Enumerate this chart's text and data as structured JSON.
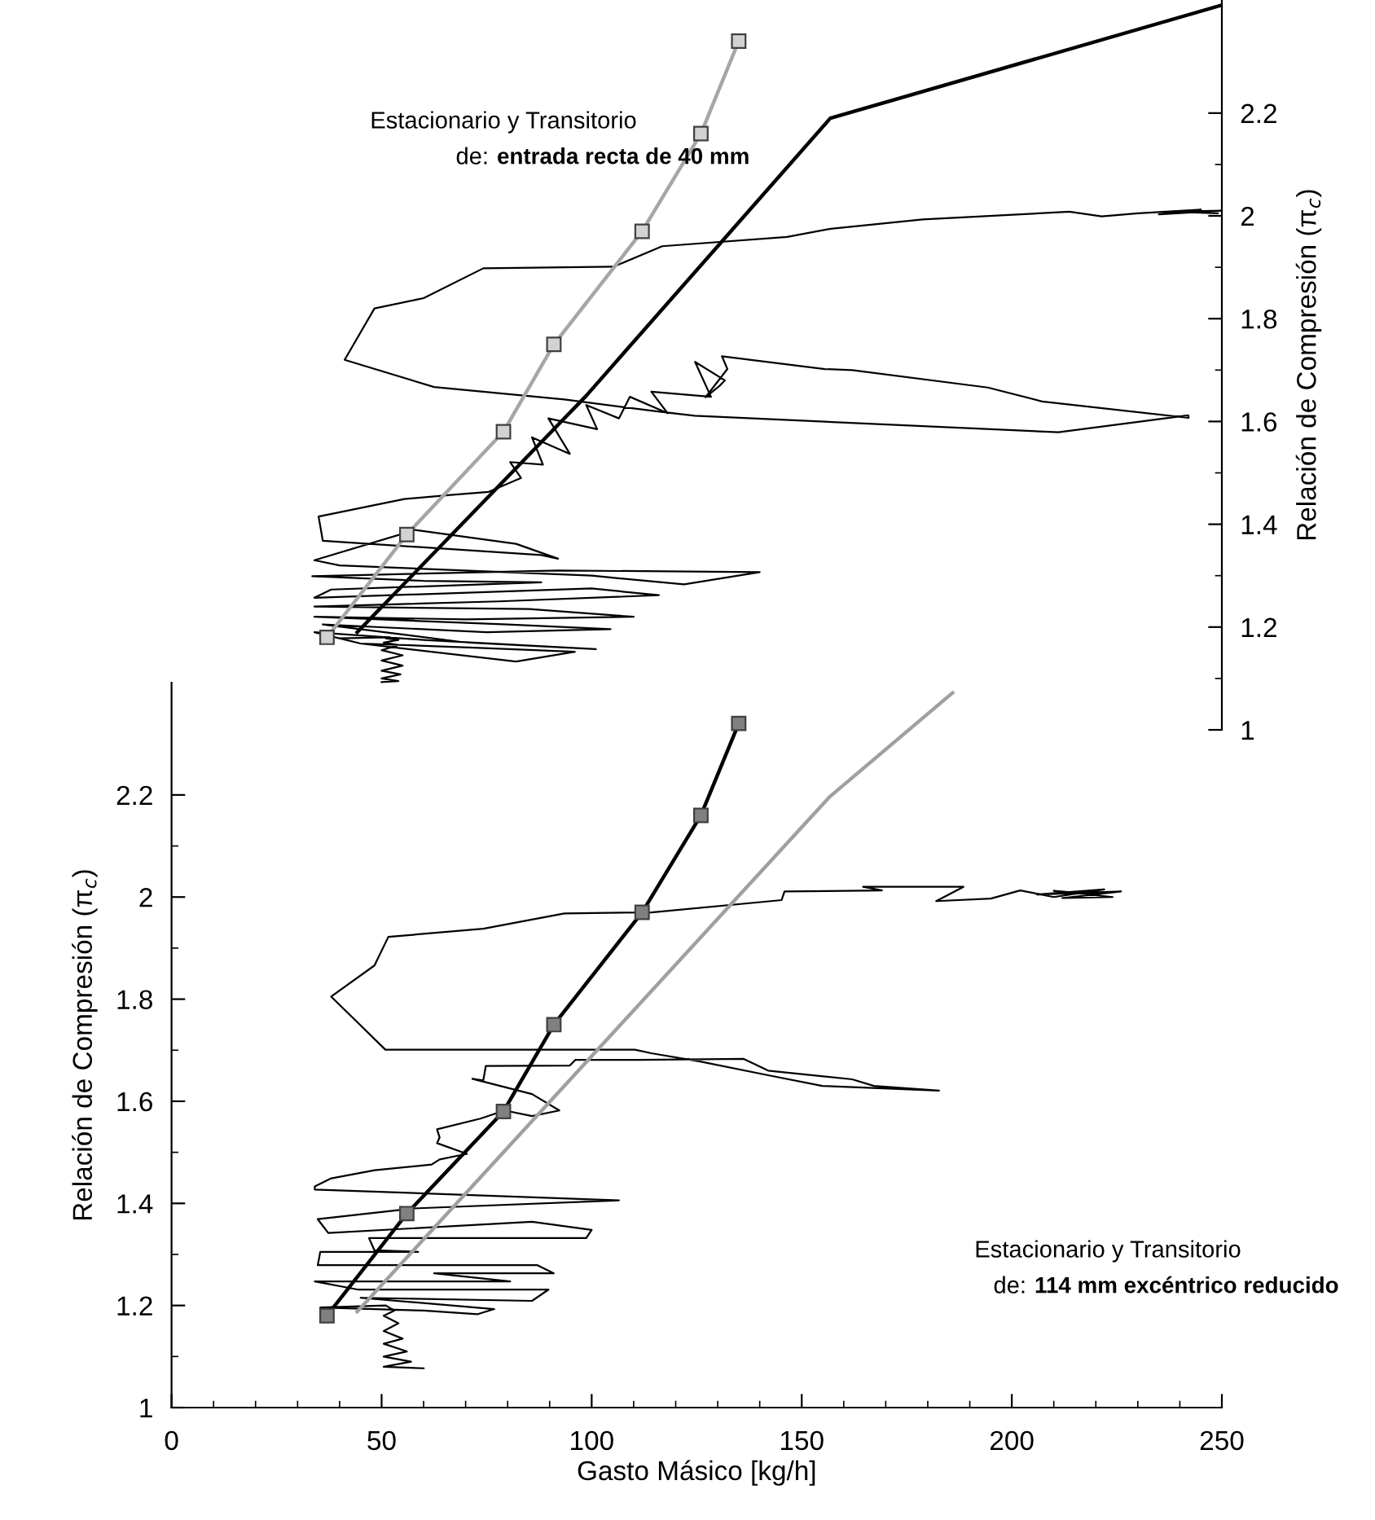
{
  "chart_data": [
    {
      "type": "line",
      "ylabel": "Relación de Compresión (π$_{c}$)",
      "annotations": [
        "Estacionario y Transitorio",
        "de:",
        "entrada recta de 40 mm"
      ],
      "xlim": [
        0,
        250
      ],
      "ylim": [
        1,
        2.42
      ],
      "yticks": [
        1,
        {
          "value": 1.1,
          "label": null
        },
        1.2,
        {
          "value": 1.3,
          "label": null
        },
        1.4,
        {
          "value": 1.5,
          "label": null
        },
        1.6,
        {
          "value": 1.7,
          "label": null
        },
        1.8,
        {
          "value": 1.9,
          "label": null
        },
        2,
        {
          "value": 2.1,
          "label": null
        },
        2.2
      ],
      "tick_labels": "y",
      "grid": false,
      "legend": false,
      "series": [
        {
          "color": "#000000",
          "marker": "none",
          "x": [
            50,
            54,
            50,
            54.5,
            50,
            55,
            50,
            55,
            50,
            54,
            50.5,
            54,
            51,
            52,
            40,
            45,
            82,
            96,
            72,
            45,
            34,
            60,
            101,
            70,
            36,
            75,
            104.5,
            80,
            34,
            70,
            110,
            85,
            34,
            78,
            116,
            100,
            34,
            38,
            88,
            60,
            33.5,
            92,
            140,
            122,
            100,
            40,
            34,
            58,
            82,
            92,
            88,
            36,
            35,
            55.4,
            66.4,
            75.5,
            83.2,
            80.6,
            88.4,
            85.8,
            94.8,
            89.7,
            101.3,
            98.7,
            106.5,
            109.1,
            118.1,
            114.2,
            128.4,
            124.6,
            131.7,
            130.4,
            127.1,
            132.3,
            131,
            155.5,
            162,
            194.3,
            207.2,
            242.1,
            242,
            211.1,
            124.5,
            114.2,
            93.5,
            62.5,
            41.2,
            48.3,
            60,
            74.2,
            105.2,
            116.8,
            146.5,
            156.9,
            178.8,
            213.7,
            221.4,
            230,
            245,
            235,
            250,
            238,
            249
          ],
          "values": [
            1.093,
            1.095,
            1.1,
            1.108,
            1.115,
            1.125,
            1.135,
            1.145,
            1.155,
            1.165,
            1.17,
            1.175,
            1.178,
            1.18,
            1.178,
            1.168,
            1.133,
            1.152,
            1.16,
            1.168,
            1.19,
            1.175,
            1.157,
            1.17,
            1.205,
            1.19,
            1.196,
            1.205,
            1.22,
            1.215,
            1.22,
            1.235,
            1.24,
            1.25,
            1.262,
            1.275,
            1.257,
            1.273,
            1.287,
            1.29,
            1.299,
            1.31,
            1.307,
            1.283,
            1.3,
            1.32,
            1.33,
            1.389,
            1.362,
            1.333,
            1.34,
            1.368,
            1.415,
            1.449,
            1.457,
            1.463,
            1.49,
            1.521,
            1.516,
            1.569,
            1.537,
            1.606,
            1.585,
            1.632,
            1.606,
            1.648,
            1.616,
            1.658,
            1.648,
            1.716,
            1.68,
            1.669,
            1.647,
            1.702,
            1.727,
            1.702,
            1.7,
            1.666,
            1.639,
            1.607,
            1.612,
            1.579,
            1.611,
            1.621,
            1.643,
            1.667,
            1.72,
            1.82,
            1.84,
            1.898,
            1.901,
            1.941,
            1.959,
            1.975,
            1.993,
            2.008,
            1.999,
            2.005,
            2.012,
            2.003,
            2.01,
            2.008,
            2.005
          ]
        },
        {
          "color": "#a6a6a6",
          "marker": "square",
          "x": [
            37,
            56,
            79,
            91,
            112,
            126,
            135
          ],
          "values": [
            1.18,
            1.38,
            1.58,
            1.75,
            1.97,
            2.16,
            2.34
          ]
        },
        {
          "color": "#000000",
          "marker": "none",
          "x": [
            44.2,
            98.7,
            156.8,
            250
          ],
          "values": [
            1.19,
            1.65,
            2.19,
            2.41
          ]
        }
      ]
    },
    {
      "type": "line",
      "xlabel": "Gasto Másico [kg/h]",
      "ylabel": "Relación de Compresión (π$_{c}$)",
      "annotations": [
        "Estacionario y Transitorio",
        "de:",
        "114 mm excéntrico reducido"
      ],
      "xlim": [
        0,
        250
      ],
      "ylim": [
        1,
        2.42
      ],
      "xticks": [
        0,
        {
          "value": 10,
          "label": null
        },
        {
          "value": 20,
          "label": null
        },
        {
          "value": 30,
          "label": null
        },
        {
          "value": 40,
          "label": null
        },
        50,
        {
          "value": 60,
          "label": null
        },
        {
          "value": 70,
          "label": null
        },
        {
          "value": 80,
          "label": null
        },
        {
          "value": 90,
          "label": null
        },
        100,
        {
          "value": 110,
          "label": null
        },
        {
          "value": 120,
          "label": null
        },
        {
          "value": 130,
          "label": null
        },
        {
          "value": 140,
          "label": null
        },
        150,
        {
          "value": 160,
          "label": null
        },
        {
          "value": 170,
          "label": null
        },
        {
          "value": 180,
          "label": null
        },
        {
          "value": 190,
          "label": null
        },
        200,
        {
          "value": 210,
          "label": null
        },
        {
          "value": 220,
          "label": null
        },
        {
          "value": 230,
          "label": null
        },
        {
          "value": 240,
          "label": null
        },
        250
      ],
      "yticks": [
        1,
        {
          "value": 1.1,
          "label": null
        },
        1.2,
        {
          "value": 1.3,
          "label": null
        },
        1.4,
        {
          "value": 1.5,
          "label": null
        },
        1.6,
        {
          "value": 1.7,
          "label": null
        },
        1.8,
        {
          "value": 1.9,
          "label": null
        },
        2,
        {
          "value": 2.1,
          "label": null
        },
        2.2
      ],
      "grid": false,
      "legend": false,
      "series": [
        {
          "color": "#000000",
          "marker": "none",
          "x": [
            60,
            50.5,
            57,
            50.5,
            56,
            50.5,
            55,
            50.5,
            54,
            50.5,
            53,
            51,
            35.4,
            60,
            72.9,
            76.8,
            45,
            85.8,
            89.7,
            44.5,
            34.1,
            80.6,
            62.5,
            91,
            87.1,
            34.8,
            35.4,
            58.7,
            48.3,
            47,
            98.7,
            100,
            85.8,
            37.3,
            34.8,
            57.4,
            106.5,
            34.1,
            34.1,
            38,
            48.3,
            61.9,
            63.8,
            70.3,
            63.2,
            63.8,
            63.2,
            73.5,
            79.3,
            85.8,
            92.3,
            85.8,
            71.6,
            74.2,
            74.8,
            94.8,
            96.1,
            111.6,
            136.2,
            142,
            162,
            167.2,
            182.7,
            154.9,
            142,
            125.8,
            114.2,
            110.3,
            50.9,
            38,
            48.3,
            51.6,
            74.2,
            93.5,
            114.2,
            145.2,
            145.9,
            169.1,
            164.6,
            188.5,
            182,
            195,
            202,
            210,
            222,
            206,
            226,
            212,
            224,
            210,
            220
          ],
          "values": [
            1.077,
            1.08,
            1.09,
            1.1,
            1.11,
            1.125,
            1.135,
            1.15,
            1.165,
            1.18,
            1.19,
            1.2,
            1.196,
            1.19,
            1.183,
            1.193,
            1.215,
            1.209,
            1.231,
            1.231,
            1.247,
            1.247,
            1.263,
            1.263,
            1.279,
            1.279,
            1.305,
            1.305,
            1.308,
            1.332,
            1.332,
            1.348,
            1.364,
            1.342,
            1.369,
            1.39,
            1.406,
            1.427,
            1.433,
            1.449,
            1.465,
            1.476,
            1.486,
            1.497,
            1.518,
            1.529,
            1.545,
            1.566,
            1.582,
            1.571,
            1.582,
            1.614,
            1.644,
            1.641,
            1.669,
            1.67,
            1.681,
            1.681,
            1.683,
            1.66,
            1.643,
            1.63,
            1.621,
            1.63,
            1.651,
            1.678,
            1.694,
            1.701,
            1.701,
            1.805,
            1.866,
            1.922,
            1.938,
            1.968,
            1.97,
            1.994,
            2.011,
            2.013,
            2.02,
            2.02,
            1.992,
            1.997,
            2.013,
            2,
            2.015,
            2.005,
            2.011,
            1.998,
            2,
            2.012,
            2.005
          ]
        },
        {
          "color": "#a0a0a0",
          "marker": "none",
          "x": [
            44.2,
            156.6,
            185.9
          ],
          "values": [
            1.188,
            2.196,
            2.4
          ]
        },
        {
          "color": "#000000",
          "marker": "square",
          "x": [
            37,
            56,
            79,
            91,
            112,
            126,
            135
          ],
          "values": [
            1.18,
            1.38,
            1.58,
            1.75,
            1.97,
            2.16,
            2.34
          ]
        }
      ]
    }
  ]
}
